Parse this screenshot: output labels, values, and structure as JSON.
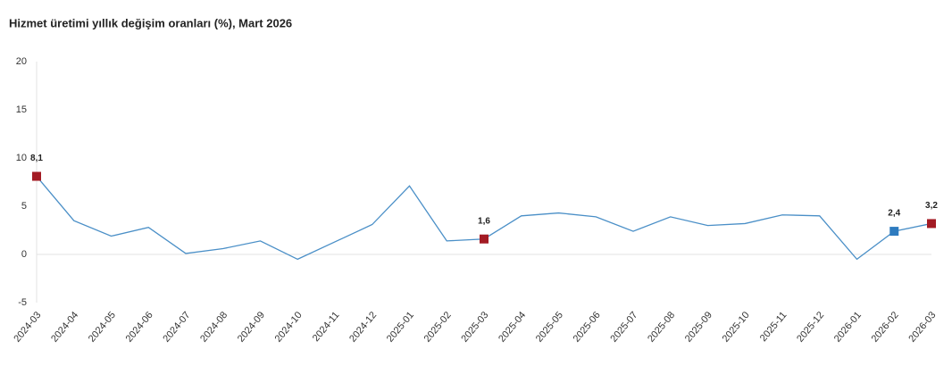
{
  "chart_data": {
    "type": "line",
    "title": "Hizmet üretimi yıllık değişim oranları (%), Mart 2026",
    "categories": [
      "2024-03",
      "2024-04",
      "2024-05",
      "2024-06",
      "2024-07",
      "2024-08",
      "2024-09",
      "2024-10",
      "2024-11",
      "2024-12",
      "2025-01",
      "2025-02",
      "2025-03",
      "2025-04",
      "2025-05",
      "2025-06",
      "2025-07",
      "2025-08",
      "2025-09",
      "2025-10",
      "2025-11",
      "2025-12",
      "2026-01",
      "2026-02",
      "2026-03"
    ],
    "series": [
      {
        "color": "#4a8fc7",
        "values": [
          8.1,
          3.5,
          1.9,
          2.8,
          0.1,
          0.6,
          1.4,
          -0.5,
          1.3,
          3.1,
          7.1,
          1.4,
          1.6,
          4.0,
          4.3,
          3.9,
          2.4,
          3.9,
          3.0,
          3.2,
          4.1,
          4.0,
          -0.5,
          2.4,
          3.2
        ],
        "value_labels": [
          "8,1",
          null,
          null,
          null,
          null,
          null,
          null,
          null,
          null,
          null,
          null,
          null,
          "1,6",
          null,
          null,
          null,
          null,
          null,
          null,
          null,
          null,
          null,
          null,
          "2,4",
          "3,2"
        ],
        "marker_colors": [
          "#a31b24",
          null,
          null,
          null,
          null,
          null,
          null,
          null,
          null,
          null,
          null,
          null,
          "#a31b24",
          null,
          null,
          null,
          null,
          null,
          null,
          null,
          null,
          null,
          null,
          "#2e7bbf",
          "#a31b24"
        ]
      }
    ],
    "ylim": [
      -5,
      20
    ],
    "yticks": [
      -5,
      0,
      5,
      10,
      15,
      20
    ],
    "grid": false
  }
}
